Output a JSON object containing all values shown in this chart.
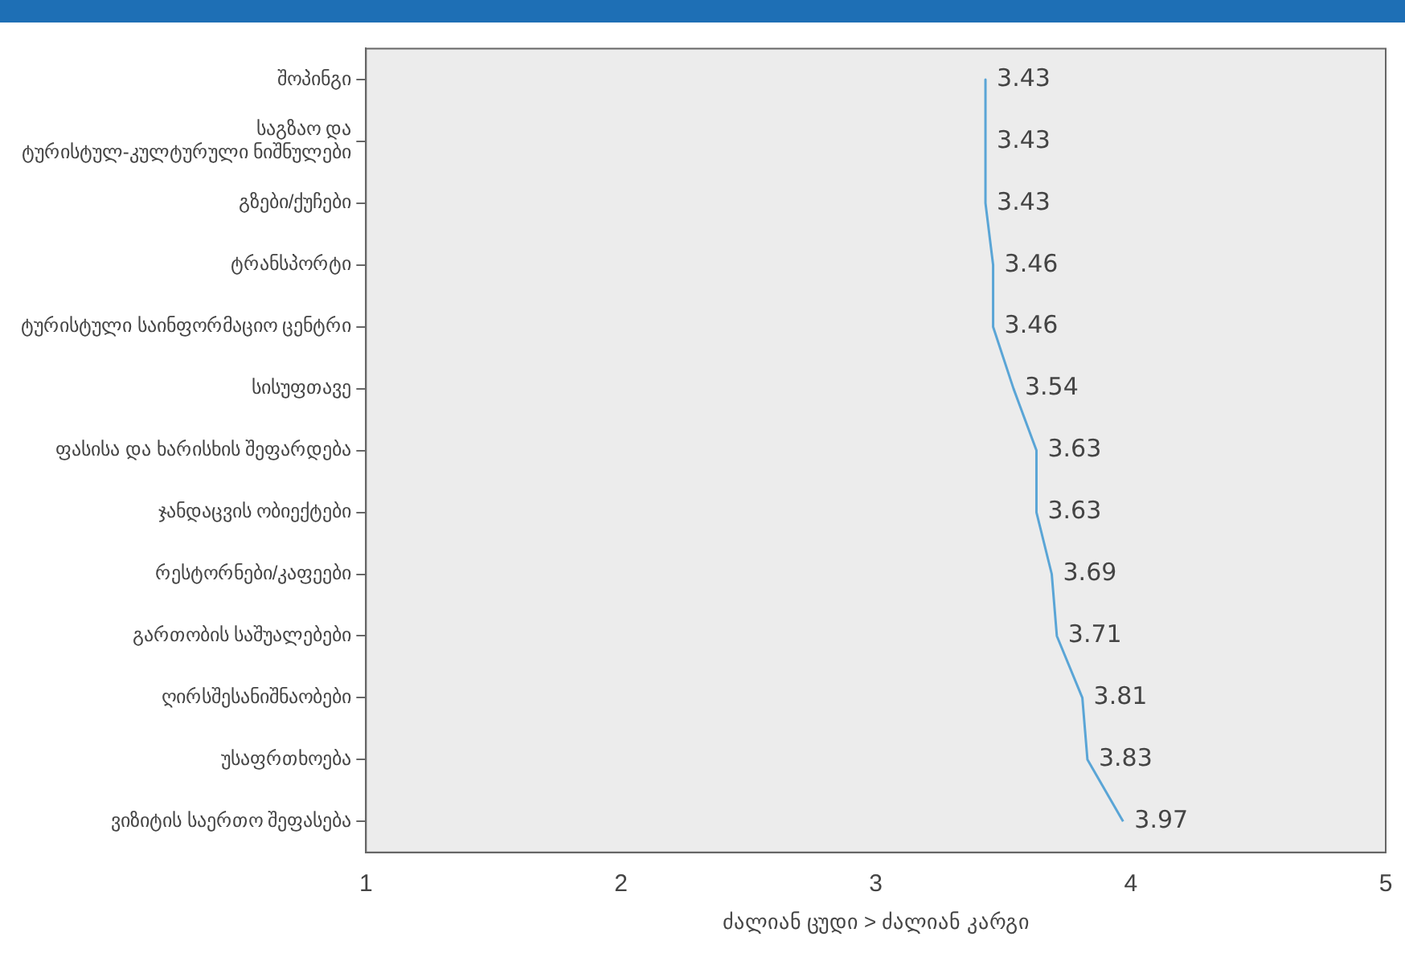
{
  "chart_data": {
    "type": "line",
    "orientation": "horizontal",
    "categories": [
      "შოპინგი",
      "საგზაო და ტურისტულ-კულტურული ნიშნულები",
      "გზები/ქუჩები",
      "ტრანსპორტი",
      "ტურისტული საინფორმაციო ცენტრი",
      "სისუფთავე",
      "ფასისა და ხარისხის შეფარდება",
      "ჯანდაცვის ობიექტები",
      "რესტორნები/კაფეები",
      "გართობის საშუალებები",
      "ღირსშესანიშნაობები",
      "უსაფრთხოება",
      "ვიზიტის საერთო შეფასება"
    ],
    "series": [
      {
        "color": "#5aa5d6",
        "values": [
          3.43,
          3.43,
          3.43,
          3.46,
          3.46,
          3.54,
          3.63,
          3.63,
          3.69,
          3.71,
          3.81,
          3.83,
          3.97
        ]
      }
    ],
    "xlim": [
      1,
      5
    ],
    "xticks": [
      1,
      2,
      3,
      4,
      5
    ],
    "xlabel": "ძალიან ცუდი > ძალიან კარგი",
    "data_labels": true,
    "grid": false,
    "legend": false
  }
}
